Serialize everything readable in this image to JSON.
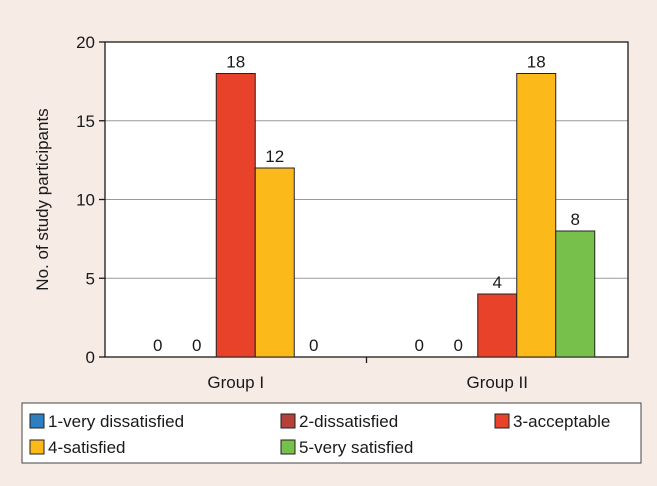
{
  "chart_data": {
    "type": "bar",
    "title": "",
    "xlabel": "",
    "ylabel": "No. of study participants",
    "ylim": [
      0,
      20
    ],
    "yticks": [
      0,
      5,
      10,
      15,
      20
    ],
    "grid": true,
    "legend_position": "bottom",
    "categories": [
      "Group I",
      "Group II"
    ],
    "series": [
      {
        "name": "1-very dissatisfied",
        "color": "#2e7fc1",
        "values": [
          0,
          0
        ]
      },
      {
        "name": "2-dissatisfied",
        "color": "#b5413a",
        "values": [
          0,
          0
        ]
      },
      {
        "name": "3-acceptable",
        "color": "#e8432a",
        "values": [
          18,
          4
        ]
      },
      {
        "name": "4-satisfied",
        "color": "#fbba19",
        "values": [
          12,
          18
        ]
      },
      {
        "name": "5-very satisfied",
        "color": "#78c04c",
        "values": [
          0,
          8
        ]
      }
    ]
  },
  "colors": {
    "background": "#f7ebe6",
    "plot_background": "#ffffff",
    "gridline": "#9a9a9a",
    "axis": "#1a1a1a"
  }
}
